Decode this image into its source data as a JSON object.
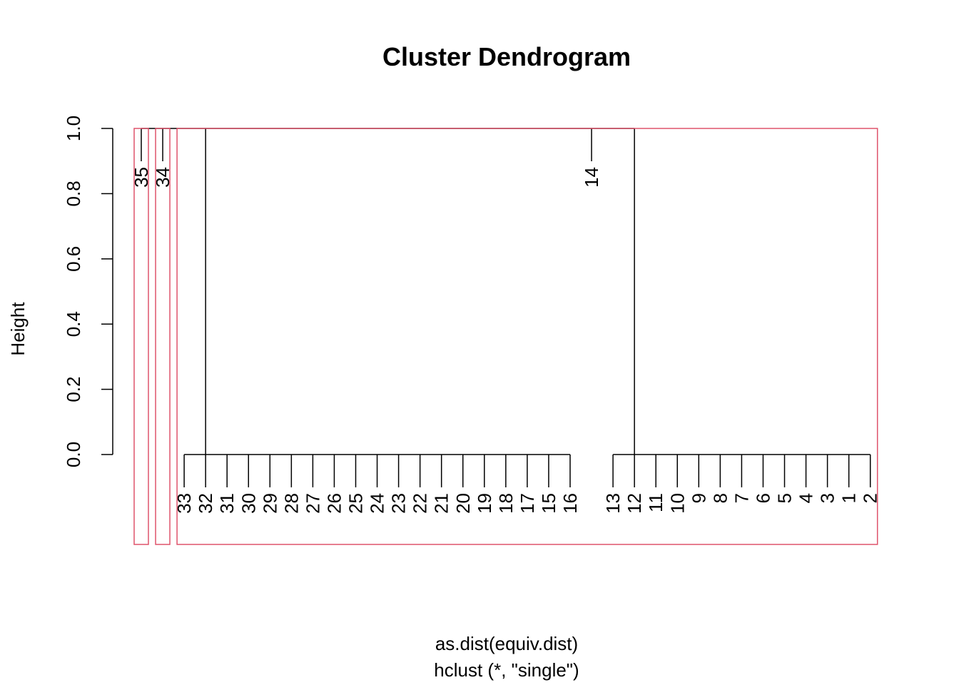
{
  "chart_data": {
    "type": "dendrogram",
    "title": "Cluster Dendrogram",
    "xlabel": "as.dist(equiv.dist)",
    "sublabel": "hclust (*, \"single\")",
    "ylabel": "Height",
    "ylim": [
      0,
      1
    ],
    "yticks": [
      "0.0",
      "0.2",
      "0.4",
      "0.6",
      "0.8",
      "1.0"
    ],
    "leaf_order": [
      "35",
      "34",
      "33",
      "32",
      "31",
      "30",
      "29",
      "28",
      "27",
      "26",
      "25",
      "24",
      "23",
      "22",
      "21",
      "20",
      "19",
      "18",
      "17",
      "15",
      "16",
      "14",
      "13",
      "12",
      "11",
      "10",
      "9",
      "8",
      "7",
      "6",
      "5",
      "4",
      "3",
      "1",
      "2"
    ],
    "singleton_leaves": [
      "35",
      "34",
      "14"
    ],
    "clusters": [
      {
        "members": [
          "33",
          "32",
          "31",
          "30",
          "29",
          "28",
          "27",
          "26",
          "25",
          "24",
          "23",
          "22",
          "21",
          "20",
          "19",
          "18",
          "17",
          "15",
          "16"
        ],
        "merge_height": 0
      },
      {
        "members": [
          "13",
          "12",
          "11",
          "10",
          "9",
          "8",
          "7",
          "6",
          "5",
          "4",
          "3",
          "1",
          "2"
        ],
        "merge_height": 0
      }
    ],
    "top_merge_height": 1.0,
    "rect_hclust_groups": [
      [
        "35"
      ],
      [
        "34"
      ],
      [
        "33",
        "32",
        "31",
        "30",
        "29",
        "28",
        "27",
        "26",
        "25",
        "24",
        "23",
        "22",
        "21",
        "20",
        "19",
        "18",
        "17",
        "15",
        "16",
        "14",
        "13",
        "12",
        "11",
        "10",
        "9",
        "8",
        "7",
        "6",
        "5",
        "4",
        "3",
        "1",
        "2"
      ]
    ],
    "colors": {
      "lines": "#000000",
      "rect_border": "#DF536B"
    }
  }
}
